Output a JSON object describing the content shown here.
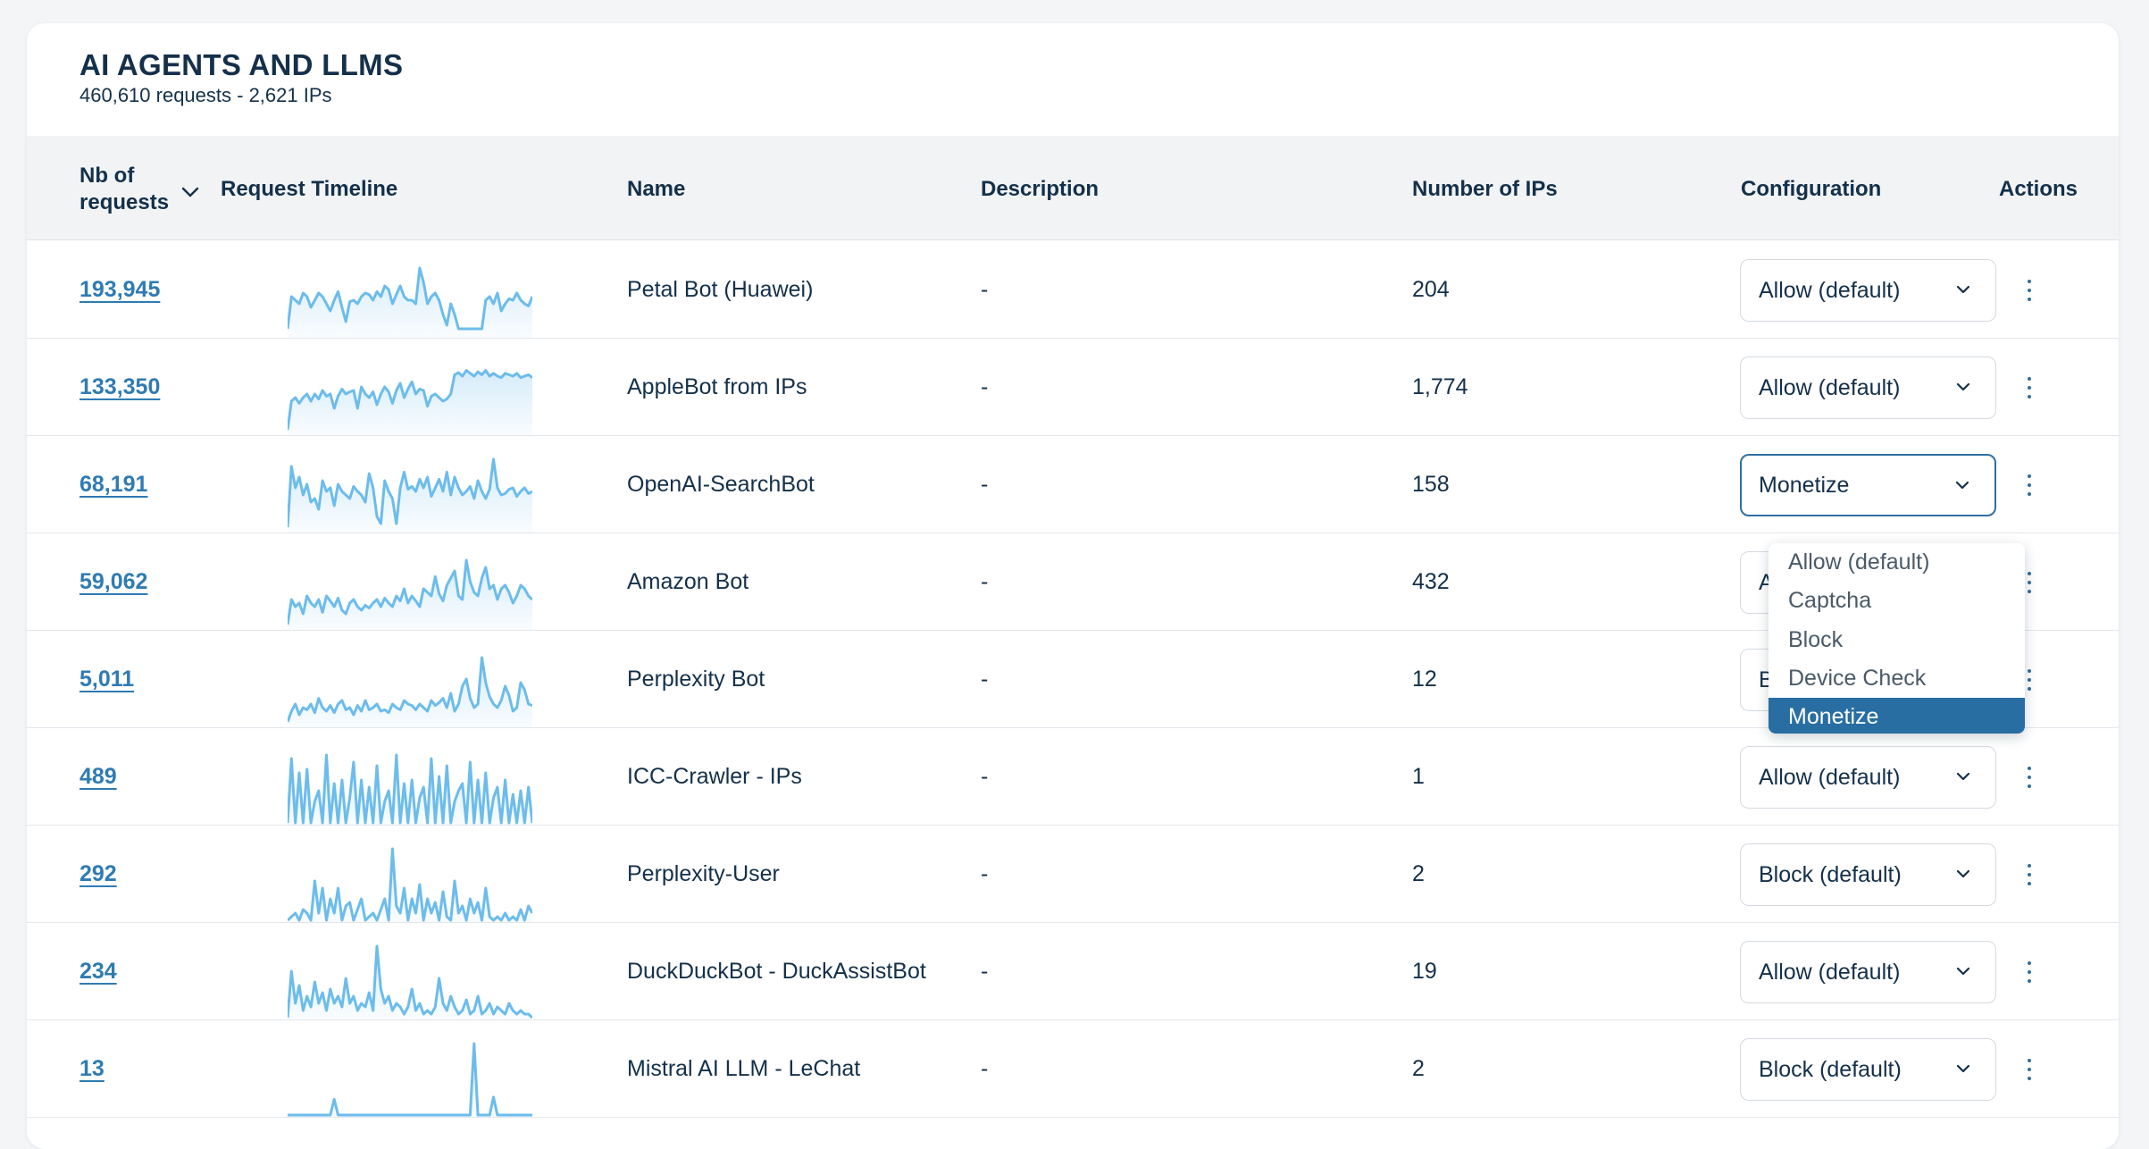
{
  "header": {
    "title": "AI AGENTS AND LLMS",
    "subtitle": "460,610 requests - 2,621 IPs"
  },
  "columns": {
    "requests_line1": "Nb of",
    "requests_line2": "requests",
    "timeline": "Request Timeline",
    "name": "Name",
    "description": "Description",
    "ips": "Number of IPs",
    "configuration": "Configuration",
    "actions": "Actions"
  },
  "sort_icon": "chevron-down-icon",
  "colors": {
    "accent": "#2f7bb3",
    "sparkline": "#6cbcec",
    "menu_selected": "#286ea3",
    "text": "#14304a"
  },
  "rows": [
    {
      "requests": "193,945",
      "name": "Petal Bot (Huawei)",
      "description": "-",
      "ips": "204",
      "config": "Allow (default)",
      "timeline": [
        0.1,
        0.55,
        0.5,
        0.45,
        0.6,
        0.55,
        0.4,
        0.5,
        0.6,
        0.55,
        0.45,
        0.35,
        0.5,
        0.62,
        0.4,
        0.2,
        0.48,
        0.5,
        0.45,
        0.55,
        0.6,
        0.58,
        0.5,
        0.62,
        0.55,
        0.7,
        0.65,
        0.45,
        0.58,
        0.7,
        0.55,
        0.5,
        0.5,
        0.45,
        0.95,
        0.75,
        0.45,
        0.55,
        0.6,
        0.5,
        0.3,
        0.15,
        0.45,
        0.3,
        0.1,
        0.1,
        0.1,
        0.1,
        0.1,
        0.1,
        0.1,
        0.5,
        0.55,
        0.45,
        0.6,
        0.35,
        0.45,
        0.52,
        0.5,
        0.6,
        0.5,
        0.45,
        0.42,
        0.55
      ]
    },
    {
      "requests": "133,350",
      "name": "AppleBot from IPs",
      "description": "-",
      "ips": "1,774",
      "config": "Allow (default)",
      "timeline": [
        0.05,
        0.45,
        0.5,
        0.42,
        0.5,
        0.55,
        0.45,
        0.55,
        0.48,
        0.6,
        0.52,
        0.55,
        0.35,
        0.52,
        0.62,
        0.55,
        0.58,
        0.6,
        0.35,
        0.65,
        0.55,
        0.5,
        0.58,
        0.4,
        0.55,
        0.65,
        0.58,
        0.42,
        0.6,
        0.7,
        0.5,
        0.62,
        0.72,
        0.55,
        0.62,
        0.6,
        0.38,
        0.52,
        0.55,
        0.5,
        0.45,
        0.48,
        0.55,
        0.82,
        0.85,
        0.8,
        0.88,
        0.84,
        0.8,
        0.86,
        0.82,
        0.88,
        0.8,
        0.84,
        0.8,
        0.78,
        0.84,
        0.82,
        0.8,
        0.84,
        0.78,
        0.8,
        0.82,
        0.78
      ]
    },
    {
      "requests": "68,191",
      "name": "OpenAI-SearchBot",
      "description": "-",
      "ips": "158",
      "config": "Monetize",
      "timeline": [
        0.05,
        0.9,
        0.6,
        0.75,
        0.5,
        0.65,
        0.4,
        0.45,
        0.3,
        0.7,
        0.55,
        0.6,
        0.35,
        0.65,
        0.55,
        0.5,
        0.45,
        0.62,
        0.55,
        0.5,
        0.4,
        0.8,
        0.6,
        0.2,
        0.1,
        0.7,
        0.55,
        0.45,
        0.1,
        0.6,
        0.82,
        0.58,
        0.62,
        0.55,
        0.72,
        0.6,
        0.75,
        0.48,
        0.6,
        0.72,
        0.55,
        0.82,
        0.5,
        0.75,
        0.6,
        0.5,
        0.55,
        0.62,
        0.45,
        0.7,
        0.55,
        0.45,
        0.58,
        1.0,
        0.6,
        0.5,
        0.52,
        0.58,
        0.6,
        0.48,
        0.55,
        0.6,
        0.52,
        0.55
      ]
    },
    {
      "requests": "59,062",
      "name": "Amazon Bot",
      "description": "-",
      "ips": "432",
      "config": "Allow (default)",
      "timeline": [
        0.05,
        0.4,
        0.3,
        0.35,
        0.2,
        0.45,
        0.35,
        0.3,
        0.4,
        0.22,
        0.45,
        0.38,
        0.3,
        0.42,
        0.25,
        0.2,
        0.35,
        0.4,
        0.3,
        0.25,
        0.32,
        0.28,
        0.35,
        0.4,
        0.3,
        0.42,
        0.35,
        0.3,
        0.45,
        0.38,
        0.55,
        0.35,
        0.45,
        0.38,
        0.3,
        0.55,
        0.5,
        0.45,
        0.72,
        0.48,
        0.38,
        0.6,
        0.7,
        0.8,
        0.45,
        0.4,
        0.95,
        0.65,
        0.5,
        0.45,
        0.7,
        0.85,
        0.55,
        0.6,
        0.4,
        0.55,
        0.6,
        0.5,
        0.35,
        0.45,
        0.6,
        0.55,
        0.45,
        0.4
      ]
    },
    {
      "requests": "5,011",
      "name": "Perplexity Bot",
      "description": "-",
      "ips": "12",
      "config": "Block",
      "timeline": [
        0.05,
        0.2,
        0.3,
        0.15,
        0.25,
        0.22,
        0.3,
        0.18,
        0.38,
        0.25,
        0.2,
        0.28,
        0.18,
        0.3,
        0.35,
        0.22,
        0.25,
        0.15,
        0.28,
        0.2,
        0.35,
        0.22,
        0.25,
        0.3,
        0.2,
        0.22,
        0.18,
        0.3,
        0.25,
        0.22,
        0.35,
        0.3,
        0.28,
        0.22,
        0.3,
        0.25,
        0.2,
        0.35,
        0.28,
        0.32,
        0.38,
        0.25,
        0.45,
        0.2,
        0.3,
        0.55,
        0.65,
        0.38,
        0.25,
        0.3,
        0.95,
        0.6,
        0.4,
        0.3,
        0.25,
        0.35,
        0.55,
        0.42,
        0.2,
        0.25,
        0.6,
        0.5,
        0.3,
        0.28
      ]
    },
    {
      "requests": "489",
      "name": "ICC-Crawler - IPs",
      "description": "-",
      "ips": "1",
      "config": "Allow (default)",
      "timeline": [
        0,
        0.9,
        0,
        0.7,
        0,
        0.75,
        0,
        0.3,
        0.45,
        0,
        0.95,
        0,
        0.55,
        0,
        0.6,
        0,
        0.35,
        0.85,
        0,
        0.6,
        0,
        0.5,
        0,
        0.8,
        0,
        0.3,
        0.45,
        0,
        0.95,
        0,
        0.55,
        0,
        0.6,
        0,
        0.35,
        0.5,
        0,
        0.9,
        0,
        0.65,
        0,
        0.8,
        0,
        0.3,
        0.45,
        0.55,
        0,
        0.85,
        0,
        0.6,
        0,
        0.7,
        0,
        0.35,
        0.5,
        0,
        0.6,
        0,
        0.4,
        0,
        0.45,
        0,
        0.5,
        0
      ]
    },
    {
      "requests": "292",
      "name": "Perplexity-User",
      "description": "-",
      "ips": "2",
      "config": "Block (default)",
      "timeline": [
        0,
        0.05,
        0.1,
        0,
        0.15,
        0.1,
        0,
        0.55,
        0.1,
        0.45,
        0,
        0.3,
        0.1,
        0.45,
        0,
        0.2,
        0.25,
        0,
        0.15,
        0.3,
        0,
        0.05,
        0.1,
        0,
        0.15,
        0.3,
        0,
        1.0,
        0.2,
        0.1,
        0.45,
        0,
        0.3,
        0.1,
        0.5,
        0,
        0.3,
        0.1,
        0.25,
        0,
        0.4,
        0.05,
        0,
        0.55,
        0.1,
        0.2,
        0,
        0.3,
        0.1,
        0.25,
        0,
        0.45,
        0.05,
        0,
        0.05,
        0,
        0.1,
        0,
        0.05,
        0,
        0.15,
        0,
        0.2,
        0.1
      ]
    },
    {
      "requests": "234",
      "name": "DuckDuckBot - DuckAssistBot",
      "description": "-",
      "ips": "19",
      "config": "Allow (default)",
      "timeline": [
        0,
        0.65,
        0.2,
        0.45,
        0.1,
        0.3,
        0.15,
        0.5,
        0.2,
        0.35,
        0.1,
        0.4,
        0.2,
        0.3,
        0.15,
        0.55,
        0.2,
        0.3,
        0.1,
        0.2,
        0.15,
        0.35,
        0.1,
        1.0,
        0.4,
        0.2,
        0.3,
        0.1,
        0.2,
        0.15,
        0.05,
        0.15,
        0.4,
        0.1,
        0.2,
        0.05,
        0.1,
        0.05,
        0.15,
        0.55,
        0.2,
        0.1,
        0.3,
        0.15,
        0.05,
        0.1,
        0.25,
        0.05,
        0.1,
        0.3,
        0.05,
        0.1,
        0.2,
        0.05,
        0.15,
        0.1,
        0.05,
        0.2,
        0.1,
        0.05,
        0.1,
        0.05,
        0.05,
        0
      ]
    },
    {
      "requests": "13",
      "name": "Mistral AI LLM - LeChat",
      "description": "-",
      "ips": "2",
      "config": "Block (default)",
      "timeline": [
        0,
        0,
        0,
        0,
        0,
        0,
        0,
        0,
        0,
        0,
        0,
        0,
        0.22,
        0,
        0,
        0,
        0,
        0,
        0,
        0,
        0,
        0,
        0,
        0,
        0,
        0,
        0,
        0,
        0,
        0,
        0,
        0,
        0,
        0,
        0,
        0,
        0,
        0,
        0,
        0,
        0,
        0,
        0,
        0,
        0,
        0,
        0,
        0,
        1.0,
        0,
        0,
        0,
        0,
        0.25,
        0,
        0,
        0,
        0,
        0,
        0,
        0,
        0,
        0,
        0
      ]
    }
  ],
  "dropdown": {
    "open_row": 2,
    "options": [
      "Allow (default)",
      "Captcha",
      "Block",
      "Device Check",
      "Monetize"
    ],
    "selected": "Monetize"
  },
  "icons": {
    "select_chevron": "chevron-down-icon",
    "row_actions": "more-vertical-icon"
  }
}
